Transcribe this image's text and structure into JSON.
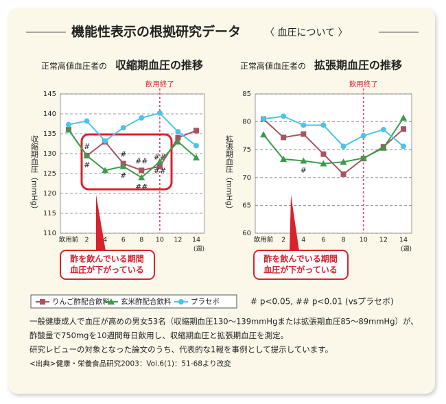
{
  "title": "機能性表示の根拠研究データ",
  "title_sub": "〈 血圧について 〉",
  "significance": "# p<0.05, ## p<0.01 (vsプラセボ)",
  "notes": [
    "一般健康成人で血圧が高めの男女53名（収縮期血圧130～139mmHgまたは拡張期血圧85～89mmHg）が、",
    "酢酸量で750mgを10週間毎日飲用し、収縮期血圧と拡張期血圧を測定。",
    "研究レビューの対象となった論文のうち、代表的な1報を事例として提示しています。",
    "<出典>健康・栄養食品研究2003：Vol.6(1)：51-68より改変"
  ],
  "chart_data": [
    {
      "type": "line",
      "subtitle_prefix": "正常高値血圧者の",
      "title": "収縮期血圧の推移",
      "y_label": "収縮期血圧（mmHg）",
      "x_unit": "(週)",
      "categories": [
        "飲用前",
        "2",
        "4",
        "6",
        "8",
        "10",
        "12",
        "14"
      ],
      "ylim": [
        110,
        145
      ],
      "yticks": [
        110,
        115,
        120,
        125,
        130,
        135,
        140,
        145
      ],
      "grid": true,
      "end_marker": {
        "label": "飲用終了",
        "category": "10"
      },
      "callout": [
        "酢を飲んでいる期間",
        "血圧が下がっている"
      ],
      "series": [
        {
          "name": "りんご酢配合飲料",
          "color": "#a8545f",
          "marker": "square",
          "values": [
            136,
            129.5,
            133,
            127.5,
            125.8,
            126.8,
            134,
            135.8
          ],
          "marks": [
            null,
            "#",
            null,
            "#",
            "##",
            "##",
            null,
            null
          ]
        },
        {
          "name": "玄米酢配合飲料",
          "color": "#3a9b4a",
          "marker": "triangle",
          "values": [
            136,
            129.5,
            125.8,
            126.8,
            124,
            128,
            133,
            129
          ],
          "marks": [
            null,
            "#",
            null,
            "#",
            "##",
            "##",
            null,
            null
          ]
        },
        {
          "name": "プラセボ",
          "color": "#4cc3ea",
          "marker": "circle",
          "values": [
            137.3,
            138.2,
            133.2,
            136.5,
            139,
            140.2,
            135.5,
            132
          ],
          "marks": [
            null,
            null,
            null,
            null,
            null,
            null,
            null,
            null
          ]
        }
      ]
    },
    {
      "type": "line",
      "subtitle_prefix": "正常高値血圧者の",
      "title": "拡張期血圧の推移",
      "y_label": "拡張期血圧（mmHg）",
      "x_unit": "(週)",
      "categories": [
        "飲用前",
        "2",
        "4",
        "6",
        "8",
        "10",
        "12",
        "14"
      ],
      "ylim": [
        60,
        85
      ],
      "yticks": [
        60,
        65,
        70,
        75,
        80,
        85
      ],
      "grid": true,
      "end_marker": {
        "label": "飲用終了",
        "category": "10"
      },
      "callout": [
        "酢を飲んでいる期間",
        "血圧が下がっている"
      ],
      "series": [
        {
          "name": "りんご酢配合飲料",
          "color": "#a8545f",
          "marker": "square",
          "values": [
            80.5,
            77.2,
            77.8,
            74.2,
            70.6,
            73.4,
            75.5,
            78.7
          ],
          "marks": [
            null,
            null,
            null,
            null,
            null,
            null,
            null,
            null
          ]
        },
        {
          "name": "玄米酢配合飲料",
          "color": "#3a9b4a",
          "marker": "triangle",
          "values": [
            77.7,
            73.3,
            73,
            72.5,
            72.8,
            73.5,
            75.3,
            80.7
          ],
          "marks": [
            null,
            null,
            "#",
            null,
            null,
            null,
            null,
            null
          ]
        },
        {
          "name": "プラセボ",
          "color": "#4cc3ea",
          "marker": "circle",
          "values": [
            80.5,
            81,
            79.4,
            79.4,
            75.6,
            77.5,
            78.6,
            75.6
          ],
          "marks": [
            null,
            null,
            null,
            null,
            null,
            null,
            null,
            null
          ]
        }
      ]
    }
  ]
}
